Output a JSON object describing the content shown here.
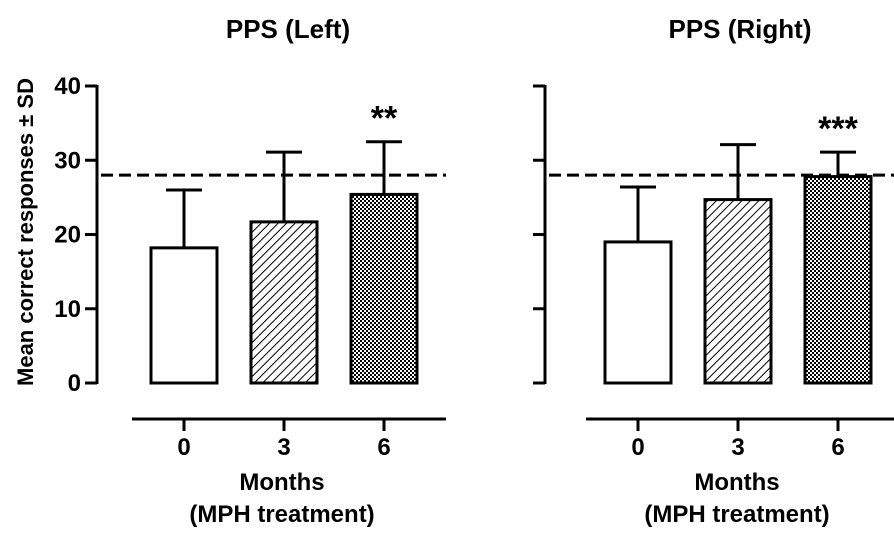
{
  "figure": {
    "ylabel": "Mean correct responses ± SD"
  },
  "chart_data": [
    {
      "type": "bar",
      "title": "PPS (Left)",
      "xlabel_line1": "Months",
      "xlabel_line2": "(MPH treatment)",
      "ylabel": "Mean correct responses ± SD",
      "categories": [
        "0",
        "3",
        "6"
      ],
      "values": [
        18.2,
        21.7,
        25.4
      ],
      "errors": [
        7.8,
        9.4,
        7.1
      ],
      "patterns": [
        "open",
        "hatched",
        "checkered"
      ],
      "annotations": [
        "",
        "",
        "**"
      ],
      "reference_line": 28,
      "ylim": [
        0,
        40
      ],
      "yticks": [
        0,
        10,
        20,
        30,
        40
      ],
      "show_ytick_labels": true
    },
    {
      "type": "bar",
      "title": "PPS (Right)",
      "xlabel_line1": "Months",
      "xlabel_line2": "(MPH treatment)",
      "categories": [
        "0",
        "3",
        "6"
      ],
      "values": [
        19.0,
        24.7,
        27.8
      ],
      "errors": [
        7.4,
        7.4,
        3.3
      ],
      "patterns": [
        "open",
        "hatched",
        "checkered"
      ],
      "annotations": [
        "",
        "",
        "***"
      ],
      "reference_line": 28,
      "ylim": [
        0,
        40
      ],
      "yticks": [
        0,
        10,
        20,
        30,
        40
      ],
      "show_ytick_labels": false
    }
  ]
}
